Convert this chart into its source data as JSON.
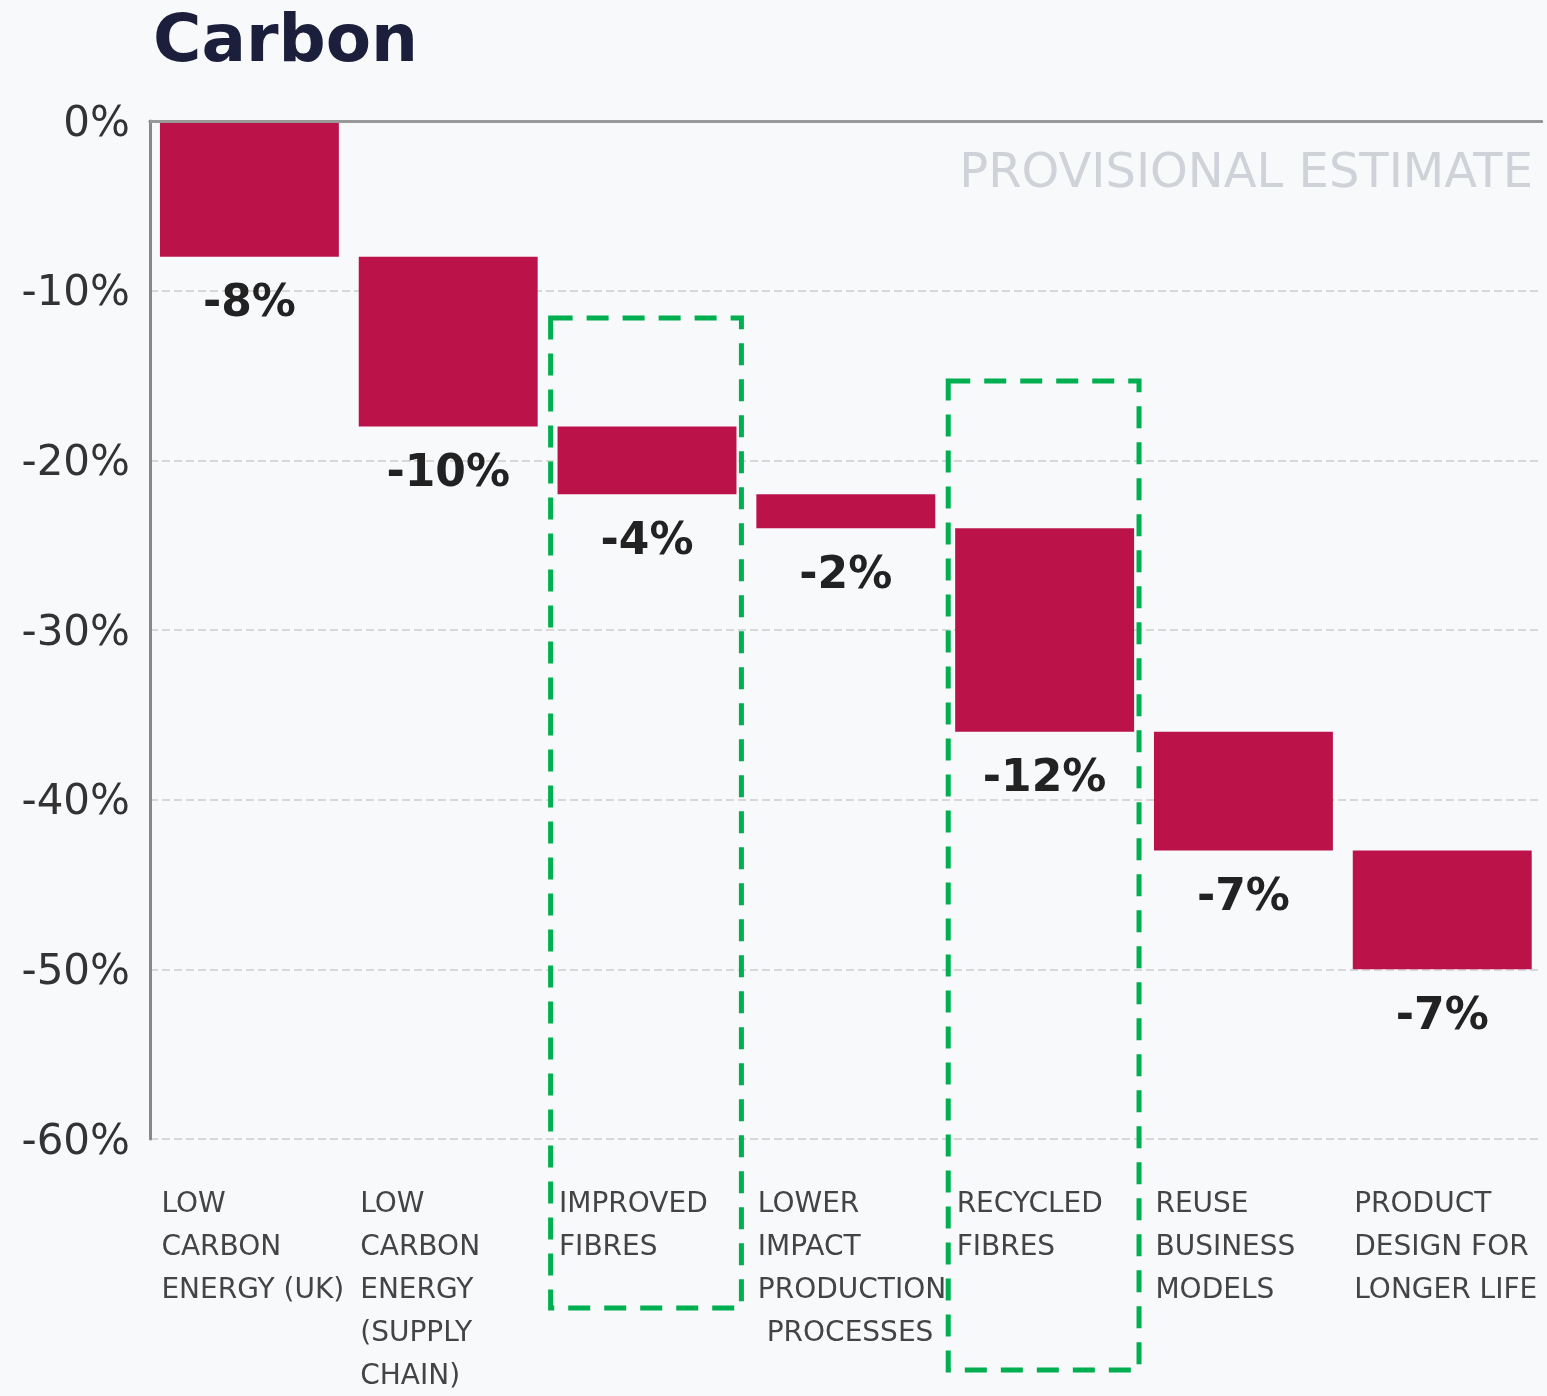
{
  "chart_data": {
    "type": "bar",
    "title": "Carbon",
    "categories": [
      "LOW CARBON ENERGY (UK)",
      "LOW CARBON ENERGY (SUPPLY CHAIN)",
      "IMPROVED FIBRES",
      "LOWER IMPACT PRODUCTION PROCESSES",
      "RECYCLED FIBRES",
      "REUSE BUSINESS MODELS",
      "PRODUCT DESIGN FOR LONGER LIFE"
    ],
    "values": [
      -8,
      -10,
      -4,
      -2,
      -12,
      -7,
      -7
    ],
    "base": [
      0,
      -8,
      -18,
      -22,
      -24,
      -36,
      -43
    ],
    "color": "#bb1349",
    "value_labels": [
      "-8%",
      "-10%",
      "-4%",
      "-2%",
      "-12%",
      "-7%",
      "-7%"
    ],
    "ylim": [
      -60,
      0
    ],
    "yticks": [
      {
        "value": 0,
        "label": "0%"
      },
      {
        "value": -10,
        "label": "-10%"
      },
      {
        "value": -20,
        "label": "-20%"
      },
      {
        "value": -30,
        "label": "-30%"
      },
      {
        "value": -40,
        "label": "-40%"
      },
      {
        "value": -50,
        "label": "-50%"
      },
      {
        "value": -60,
        "label": "-60%"
      }
    ],
    "grid": "y",
    "ref_lines": [
      {
        "axis": "y",
        "value": 0,
        "color": "#999999",
        "line_style": "solid"
      }
    ],
    "annotations": [
      "PROVISIONAL ESTIMATE"
    ]
  }
}
